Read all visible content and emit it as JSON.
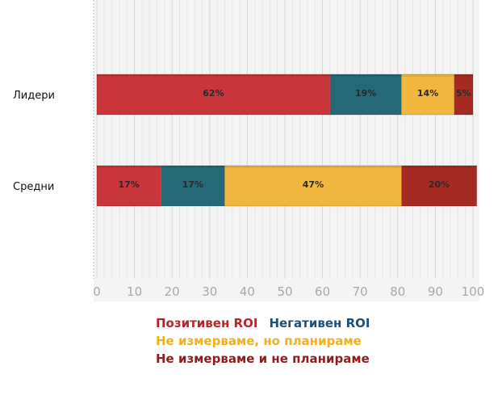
{
  "chart_data": {
    "type": "bar",
    "orientation": "horizontal",
    "stacked": true,
    "categories": [
      "Лидери",
      "Средни"
    ],
    "series": [
      {
        "name": "Позитивен ROI",
        "color": "#c8353a",
        "values": [
          62,
          17
        ]
      },
      {
        "name": "Негативен ROI",
        "color": "#256977",
        "values": [
          19,
          17
        ]
      },
      {
        "name": "Не измерваме, но планираме",
        "color": "#f0b63d",
        "values": [
          14,
          47
        ]
      },
      {
        "name": "Не измерваме и не планираме",
        "color": "#a52a24",
        "values": [
          5,
          20
        ]
      }
    ],
    "data_labels": [
      [
        "62%",
        "19%",
        "14%",
        "5%"
      ],
      [
        "17%",
        "17%",
        "47%",
        "20%"
      ]
    ],
    "xlim": [
      0,
      100
    ],
    "x_ticks": [
      "0",
      "10",
      "20",
      "30",
      "40",
      "50",
      "60",
      "70",
      "80",
      "90",
      "100"
    ],
    "grid": true,
    "legend_position": "bottom",
    "legend_colors": [
      "#b5252a",
      "#1d4f7a",
      "#f0b020",
      "#8e1e1e"
    ]
  }
}
